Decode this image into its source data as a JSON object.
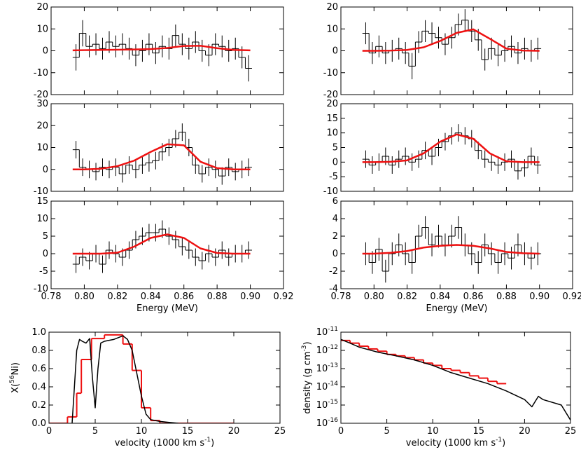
{
  "chart_data": [
    {
      "type": "histogram",
      "color": "#000000",
      "xlim": [
        0.78,
        0.92
      ],
      "ylim": [
        -20,
        20
      ],
      "xticks": [
        0.78,
        {
          "value": 0.8,
          "label": "0.80"
        },
        0.82,
        0.84,
        0.86,
        0.88,
        {
          "value": 0.9,
          "label": "0.90"
        },
        0.92
      ],
      "show_xtick_labels": false,
      "yticks": [
        -20,
        -10,
        0,
        10,
        20
      ],
      "bins": [
        0.793,
        0.797,
        0.801,
        0.805,
        0.809,
        0.813,
        0.817,
        0.821,
        0.825,
        0.829,
        0.833,
        0.837,
        0.841,
        0.845,
        0.849,
        0.853,
        0.857,
        0.861,
        0.865,
        0.869,
        0.873,
        0.877,
        0.881,
        0.885,
        0.889,
        0.893,
        0.897,
        0.901
      ],
      "values": [
        -3,
        8,
        2,
        3,
        1,
        4,
        2,
        3,
        1,
        -2,
        0,
        3,
        -1,
        2,
        1,
        7,
        3,
        1,
        4,
        0,
        -2,
        3,
        2,
        0,
        1,
        -3,
        -8
      ],
      "errors": [
        6,
        6,
        5,
        5,
        5,
        5,
        5,
        5,
        5,
        5,
        5,
        5,
        5,
        5,
        5,
        5,
        5,
        5,
        5,
        5,
        5,
        5,
        5,
        5,
        5,
        5,
        6
      ],
      "lines": [
        {
          "color": "#ee1111",
          "x": [
            0.793,
            0.8,
            0.81,
            0.82,
            0.83,
            0.84,
            0.85,
            0.86,
            0.87,
            0.88,
            0.89,
            0.9
          ],
          "values": [
            0.2,
            0.3,
            0.4,
            0.5,
            0.6,
            0.8,
            1.3,
            2.2,
            2.3,
            1.2,
            0.4,
            0.2
          ]
        }
      ]
    },
    {
      "type": "histogram",
      "color": "#000000",
      "xlim": [
        0.78,
        0.92
      ],
      "ylim": [
        -20,
        20
      ],
      "xticks": [
        0.78,
        {
          "value": 0.8,
          "label": "0.80"
        },
        0.82,
        0.84,
        0.86,
        0.88,
        {
          "value": 0.9,
          "label": "0.90"
        },
        0.92
      ],
      "show_xtick_labels": false,
      "yticks": [
        -20,
        -10,
        0,
        10,
        20
      ],
      "bins": [
        0.793,
        0.797,
        0.801,
        0.805,
        0.809,
        0.813,
        0.817,
        0.821,
        0.825,
        0.829,
        0.833,
        0.837,
        0.841,
        0.845,
        0.849,
        0.853,
        0.857,
        0.861,
        0.865,
        0.869,
        0.873,
        0.877,
        0.881,
        0.885,
        0.889,
        0.893,
        0.897,
        0.901
      ],
      "values": [
        8,
        -1,
        2,
        -1,
        0,
        1,
        -1,
        -7,
        4,
        9,
        8,
        6,
        3,
        6,
        12,
        14,
        9,
        5,
        -4,
        1,
        -2,
        0,
        2,
        -1,
        1,
        0,
        1
      ],
      "errors": [
        5,
        5,
        5,
        5,
        5,
        5,
        5,
        6,
        5,
        5,
        5,
        5,
        5,
        5,
        5,
        5,
        5,
        5,
        5,
        5,
        5,
        5,
        5,
        5,
        5,
        5,
        5
      ],
      "lines": [
        {
          "color": "#ee1111",
          "x": [
            0.793,
            0.8,
            0.81,
            0.82,
            0.83,
            0.84,
            0.85,
            0.86,
            0.87,
            0.88,
            0.89,
            0.9
          ],
          "values": [
            0,
            0,
            0.1,
            0.4,
            1.6,
            4.5,
            8.2,
            9.8,
            5.5,
            1,
            0.1,
            0
          ]
        }
      ]
    },
    {
      "type": "histogram",
      "color": "#000000",
      "xlim": [
        0.78,
        0.92
      ],
      "ylim": [
        -10,
        30
      ],
      "xticks": [
        0.78,
        {
          "value": 0.8,
          "label": "0.80"
        },
        0.82,
        0.84,
        0.86,
        0.88,
        {
          "value": 0.9,
          "label": "0.90"
        },
        0.92
      ],
      "show_xtick_labels": false,
      "yticks": [
        -10,
        0,
        10,
        20,
        30
      ],
      "bins": [
        0.793,
        0.797,
        0.801,
        0.805,
        0.809,
        0.813,
        0.817,
        0.821,
        0.825,
        0.829,
        0.833,
        0.837,
        0.841,
        0.845,
        0.849,
        0.853,
        0.857,
        0.861,
        0.865,
        0.869,
        0.873,
        0.877,
        0.881,
        0.885,
        0.889,
        0.893,
        0.897,
        0.901
      ],
      "values": [
        9,
        1,
        0,
        -1,
        1,
        0,
        1,
        -2,
        2,
        0,
        2,
        3,
        4,
        8,
        10,
        14,
        17,
        10,
        2,
        -2,
        1,
        0,
        -3,
        1,
        -1,
        0,
        1
      ],
      "errors": [
        4,
        4,
        4,
        4,
        4,
        4,
        4,
        4,
        4,
        4,
        4,
        4,
        4,
        4,
        4,
        4,
        4,
        4,
        4,
        4,
        4,
        4,
        4,
        4,
        4,
        4,
        4
      ],
      "lines": [
        {
          "color": "#ee1111",
          "x": [
            0.793,
            0.8,
            0.81,
            0.82,
            0.83,
            0.84,
            0.85,
            0.86,
            0.87,
            0.88,
            0.89,
            0.9
          ],
          "values": [
            0,
            0,
            0.3,
            1.5,
            4,
            8,
            11.5,
            11,
            3.5,
            0.6,
            0,
            0
          ]
        }
      ]
    },
    {
      "type": "histogram",
      "color": "#000000",
      "xlim": [
        0.78,
        0.92
      ],
      "ylim": [
        -10,
        20
      ],
      "xticks": [
        0.78,
        {
          "value": 0.8,
          "label": "0.80"
        },
        0.82,
        0.84,
        0.86,
        0.88,
        {
          "value": 0.9,
          "label": "0.90"
        },
        0.92
      ],
      "show_xtick_labels": false,
      "yticks": [
        -10,
        -5,
        0,
        5,
        10,
        15,
        20
      ],
      "bins": [
        0.793,
        0.797,
        0.801,
        0.805,
        0.809,
        0.813,
        0.817,
        0.821,
        0.825,
        0.829,
        0.833,
        0.837,
        0.841,
        0.845,
        0.849,
        0.853,
        0.857,
        0.861,
        0.865,
        0.869,
        0.873,
        0.877,
        0.881,
        0.885,
        0.889,
        0.893,
        0.897,
        0.901
      ],
      "values": [
        1,
        -1,
        0,
        2,
        -1,
        1,
        2,
        0,
        1,
        4,
        2,
        5,
        7,
        9,
        10,
        9,
        8,
        4,
        1,
        0,
        -1,
        0,
        1,
        -3,
        -2,
        2,
        -1
      ],
      "errors": [
        3,
        3,
        3,
        3,
        3,
        3,
        3,
        3,
        3,
        3,
        3,
        3,
        3,
        3,
        3,
        3,
        3,
        3,
        3,
        3,
        3,
        3,
        3,
        3,
        3,
        3,
        3
      ],
      "lines": [
        {
          "color": "#ee1111",
          "x": [
            0.793,
            0.8,
            0.81,
            0.82,
            0.83,
            0.84,
            0.85,
            0.86,
            0.87,
            0.88,
            0.89,
            0.9
          ],
          "values": [
            0,
            0,
            0.1,
            0.6,
            3,
            7,
            9.5,
            8,
            3,
            0.3,
            0,
            0
          ]
        }
      ]
    },
    {
      "type": "histogram",
      "color": "#000000",
      "xlim": [
        0.78,
        0.92
      ],
      "ylim": [
        -10,
        15
      ],
      "xticks": [
        0.78,
        {
          "value": 0.8,
          "label": "0.80"
        },
        0.82,
        0.84,
        0.86,
        0.88,
        {
          "value": 0.9,
          "label": "0.90"
        },
        0.92
      ],
      "show_xtick_labels": true,
      "xlabel": "Energy (MeV)",
      "yticks": [
        -10,
        -5,
        0,
        5,
        10,
        15
      ],
      "bins": [
        0.793,
        0.797,
        0.801,
        0.805,
        0.809,
        0.813,
        0.817,
        0.821,
        0.825,
        0.829,
        0.833,
        0.837,
        0.841,
        0.845,
        0.849,
        0.853,
        0.857,
        0.861,
        0.865,
        0.869,
        0.873,
        0.877,
        0.881,
        0.885,
        0.889,
        0.893,
        0.897,
        0.901
      ],
      "values": [
        -3,
        -1,
        -2,
        0,
        -3,
        1,
        0,
        -1,
        1,
        4,
        5,
        6,
        6,
        7,
        5,
        4,
        2,
        1,
        -1,
        -2,
        0,
        -1,
        1,
        -1,
        0,
        0,
        1
      ],
      "errors": [
        2.5,
        2.5,
        2.5,
        2.5,
        2.5,
        2.5,
        2.5,
        2.5,
        2.5,
        2.5,
        2.5,
        2.5,
        2.5,
        2.5,
        2.5,
        2.5,
        2.5,
        2.5,
        2.5,
        2.5,
        2.5,
        2.5,
        2.5,
        2.5,
        2.5,
        2.5,
        2.5
      ],
      "lines": [
        {
          "color": "#ee1111",
          "x": [
            0.793,
            0.8,
            0.81,
            0.82,
            0.83,
            0.84,
            0.85,
            0.86,
            0.87,
            0.88,
            0.89,
            0.9
          ],
          "values": [
            0,
            0,
            0,
            0.3,
            2,
            4.5,
            5.5,
            4.5,
            1.5,
            0.2,
            0,
            0
          ]
        }
      ]
    },
    {
      "type": "histogram",
      "color": "#000000",
      "xlim": [
        0.78,
        0.92
      ],
      "ylim": [
        -4,
        6
      ],
      "xticks": [
        0.78,
        {
          "value": 0.8,
          "label": "0.80"
        },
        0.82,
        0.84,
        0.86,
        0.88,
        {
          "value": 0.9,
          "label": "0.90"
        },
        0.92
      ],
      "show_xtick_labels": true,
      "xlabel": "Energy (MeV)",
      "yticks": [
        -4,
        -2,
        0,
        2,
        4,
        6
      ],
      "bins": [
        0.793,
        0.797,
        0.801,
        0.805,
        0.809,
        0.813,
        0.817,
        0.821,
        0.825,
        0.829,
        0.833,
        0.837,
        0.841,
        0.845,
        0.849,
        0.853,
        0.857,
        0.861,
        0.865,
        0.869,
        0.873,
        0.877,
        0.881,
        0.885,
        0.889,
        0.893,
        0.897,
        0.901
      ],
      "values": [
        0,
        -1,
        0.5,
        -2,
        0,
        1,
        0,
        -1,
        2,
        3,
        1,
        2,
        1,
        2,
        3,
        1,
        0,
        -1,
        1,
        0,
        -1,
        0,
        -0.5,
        1,
        0,
        -0.5,
        0
      ],
      "errors": [
        1.3,
        1.3,
        1.3,
        1.3,
        1.3,
        1.3,
        1.3,
        1.3,
        1.3,
        1.3,
        1.3,
        1.3,
        1.3,
        1.3,
        1.3,
        1.3,
        1.3,
        1.3,
        1.3,
        1.3,
        1.3,
        1.3,
        1.3,
        1.3,
        1.3,
        1.3,
        1.3
      ],
      "lines": [
        {
          "color": "#ee1111",
          "x": [
            0.793,
            0.8,
            0.81,
            0.82,
            0.83,
            0.84,
            0.85,
            0.86,
            0.87,
            0.88,
            0.89,
            0.9
          ],
          "values": [
            0,
            0,
            0.1,
            0.3,
            0.7,
            0.9,
            1,
            0.9,
            0.6,
            0.2,
            0.05,
            0
          ]
        }
      ]
    },
    {
      "type": "line",
      "xlim": [
        0,
        25
      ],
      "ylim": [
        0,
        1
      ],
      "xticks": [
        0,
        5,
        10,
        15,
        20,
        25
      ],
      "show_xtick_labels": true,
      "yticks": [
        {
          "value": 0,
          "label": "0.0"
        },
        0.2,
        0.4,
        0.6,
        0.8,
        {
          "value": 1,
          "label": "1.0"
        }
      ],
      "xlabel": "velocity (1000 km s^-1)",
      "ylabel": "X(^56Ni)",
      "lines": [
        {
          "color": "#000000",
          "x": [
            2.5,
            3,
            3.3,
            3.6,
            4,
            4.4,
            4.7,
            5,
            5.3,
            5.6,
            6,
            7,
            8,
            8.5,
            9,
            9.5,
            10,
            10.5,
            11,
            12,
            13,
            14
          ],
          "values": [
            0,
            0.8,
            0.92,
            0.9,
            0.88,
            0.93,
            0.5,
            0.17,
            0.6,
            0.88,
            0.9,
            0.92,
            0.96,
            0.92,
            0.8,
            0.55,
            0.3,
            0.1,
            0.04,
            0.02,
            0.01,
            0
          ]
        }
      ],
      "steps": {
        "color": "#ee1111",
        "bins": [
          0,
          2,
          3,
          3.5,
          4.6,
          6,
          8,
          9,
          10,
          11,
          12,
          20
        ],
        "values": [
          0,
          0.07,
          0.33,
          0.7,
          0.93,
          0.97,
          0.87,
          0.58,
          0.17,
          0.03,
          0
        ]
      }
    },
    {
      "type": "line",
      "xlim": [
        0,
        25
      ],
      "ylim": [
        1e-16,
        1e-11
      ],
      "log_y": true,
      "xticks": [
        0,
        5,
        10,
        15,
        20,
        25
      ],
      "show_xtick_labels": true,
      "yticks": [
        {
          "value": 1e-16,
          "label": "10^-16"
        },
        {
          "value": 1e-15,
          "label": "10^-15"
        },
        {
          "value": 1e-14,
          "label": "10^-14"
        },
        {
          "value": 1e-13,
          "label": "10^-13"
        },
        {
          "value": 1e-12,
          "label": "10^-12"
        },
        {
          "value": 1e-11,
          "label": "10^-11"
        }
      ],
      "xlabel": "velocity (1000 km s^-1)",
      "ylabel": "density (g cm^-3)",
      "lines": [
        {
          "color": "#000000",
          "x": [
            0,
            1,
            2,
            4,
            6,
            8,
            10,
            12,
            14,
            16,
            18,
            20,
            20.8,
            21.5,
            22,
            24,
            25
          ],
          "values": [
            4e-12,
            2.5e-12,
            1.5e-12,
            8e-13,
            5e-13,
            3e-13,
            1.5e-13,
            6e-14,
            3e-14,
            1.5e-14,
            6e-15,
            2e-15,
            8e-16,
            3e-15,
            2e-15,
            1e-15,
            1.5e-16
          ]
        }
      ],
      "steps": {
        "color": "#ee1111",
        "bins": [
          0,
          1,
          2,
          3,
          4,
          5,
          6,
          7,
          8,
          9,
          10,
          11,
          12,
          13,
          14,
          15,
          16,
          17,
          18
        ],
        "values": [
          3.5e-12,
          2.5e-12,
          1.7e-12,
          1.2e-12,
          9e-13,
          6e-13,
          5e-13,
          4e-13,
          3e-13,
          2e-13,
          1.5e-13,
          1e-13,
          8e-14,
          6e-14,
          4e-14,
          3e-14,
          2e-14,
          1.5e-14
        ]
      }
    }
  ]
}
